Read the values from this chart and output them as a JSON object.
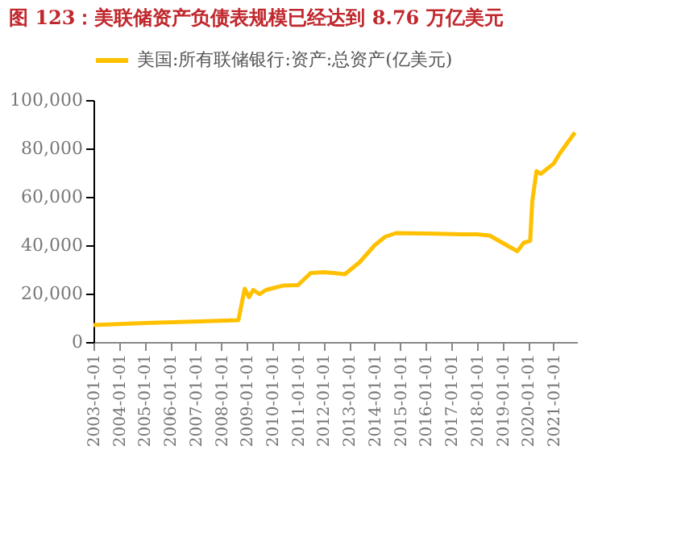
{
  "chart_data": {
    "type": "line",
    "title": "图 123：美联储资产负债表规模已经达到 8.76 万亿美元",
    "x": [
      "2003-01-01",
      "2005-01-01",
      "2008-09-01",
      "2008-12-01",
      "2009-02-01",
      "2009-04-01",
      "2009-07-01",
      "2009-10-01",
      "2010-06-01",
      "2011-01-01",
      "2011-07-01",
      "2012-01-01",
      "2012-06-01",
      "2012-11-01",
      "2013-06-01",
      "2014-01-01",
      "2014-06-01",
      "2014-11-01",
      "2016-01-01",
      "2017-06-01",
      "2018-01-01",
      "2018-07-01",
      "2019-08-01",
      "2019-11-01",
      "2020-02-01",
      "2020-03-01",
      "2020-05-01",
      "2020-07-01",
      "2021-01-01",
      "2021-04-01",
      "2021-11-01"
    ],
    "series": [
      {
        "name": "美国:所有联储银行:资产:总资产(亿美元)",
        "color": "#ffc000",
        "values": [
          7000,
          7800,
          9000,
          22000,
          18500,
          21500,
          19800,
          21500,
          23300,
          23500,
          28500,
          28800,
          28500,
          28000,
          33000,
          40000,
          43500,
          45000,
          44800,
          44500,
          44500,
          44000,
          37500,
          41000,
          41800,
          58000,
          70600,
          69500,
          73700,
          78000,
          86600
        ]
      }
    ],
    "xlim": [
      "2003-01-01",
      "2021-12-01"
    ],
    "xticks": [
      "2003-01-01",
      "2004-01-01",
      "2005-01-01",
      "2006-01-01",
      "2007-01-01",
      "2008-01-01",
      "2009-01-01",
      "2010-01-01",
      "2011-01-01",
      "2012-01-01",
      "2013-01-01",
      "2014-01-01",
      "2015-01-01",
      "2016-01-01",
      "2017-01-01",
      "2018-01-01",
      "2019-01-01",
      "2020-01-01",
      "2021-01-01"
    ],
    "ylim": [
      0,
      100000
    ],
    "yticks": [
      {
        "value": 0,
        "label": "0"
      },
      {
        "value": 20000,
        "label": "20,000"
      },
      {
        "value": 40000,
        "label": "40,000"
      },
      {
        "value": 60000,
        "label": "60,000"
      },
      {
        "value": 80000,
        "label": "80,000"
      },
      {
        "value": 100000,
        "label": "100,000"
      }
    ],
    "grid": false,
    "legend": "top",
    "marker": "none",
    "line_style": "solid"
  }
}
